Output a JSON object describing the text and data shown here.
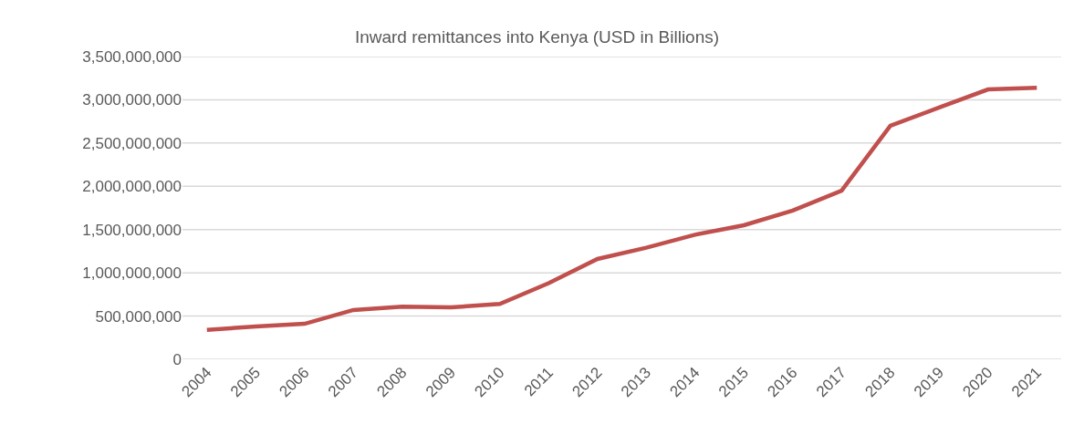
{
  "chart_data": {
    "type": "line",
    "title": "Inward remittances into Kenya (USD in Billions)",
    "categories": [
      "2004",
      "2005",
      "2006",
      "2007",
      "2008",
      "2009",
      "2010",
      "2011",
      "2012",
      "2013",
      "2014",
      "2015",
      "2016",
      "2017",
      "2018",
      "2019",
      "2020",
      "2021"
    ],
    "series": [
      {
        "color": "#c0504d",
        "values": [
          340000000,
          380000000,
          410000000,
          570000000,
          610000000,
          600000000,
          640000000,
          880000000,
          1160000000,
          1290000000,
          1440000000,
          1550000000,
          1720000000,
          1950000000,
          2700000000,
          2910000000,
          3120000000,
          3140000000
        ]
      }
    ],
    "ylim": [
      0,
      3500000000
    ],
    "yticks": [
      {
        "value": 0,
        "label": "0"
      },
      {
        "value": 500000000,
        "label": "500,000,000"
      },
      {
        "value": 1000000000,
        "label": "1,000,000,000"
      },
      {
        "value": 1500000000,
        "label": "1,500,000,000"
      },
      {
        "value": 2000000000,
        "label": "2,000,000,000"
      },
      {
        "value": 2500000000,
        "label": "2,500,000,000"
      },
      {
        "value": 3000000000,
        "label": "3,000,000,000"
      },
      {
        "value": 3500000000,
        "label": "3,500,000,000"
      }
    ],
    "grid": "y",
    "marker": "none",
    "line_style": "solid"
  }
}
